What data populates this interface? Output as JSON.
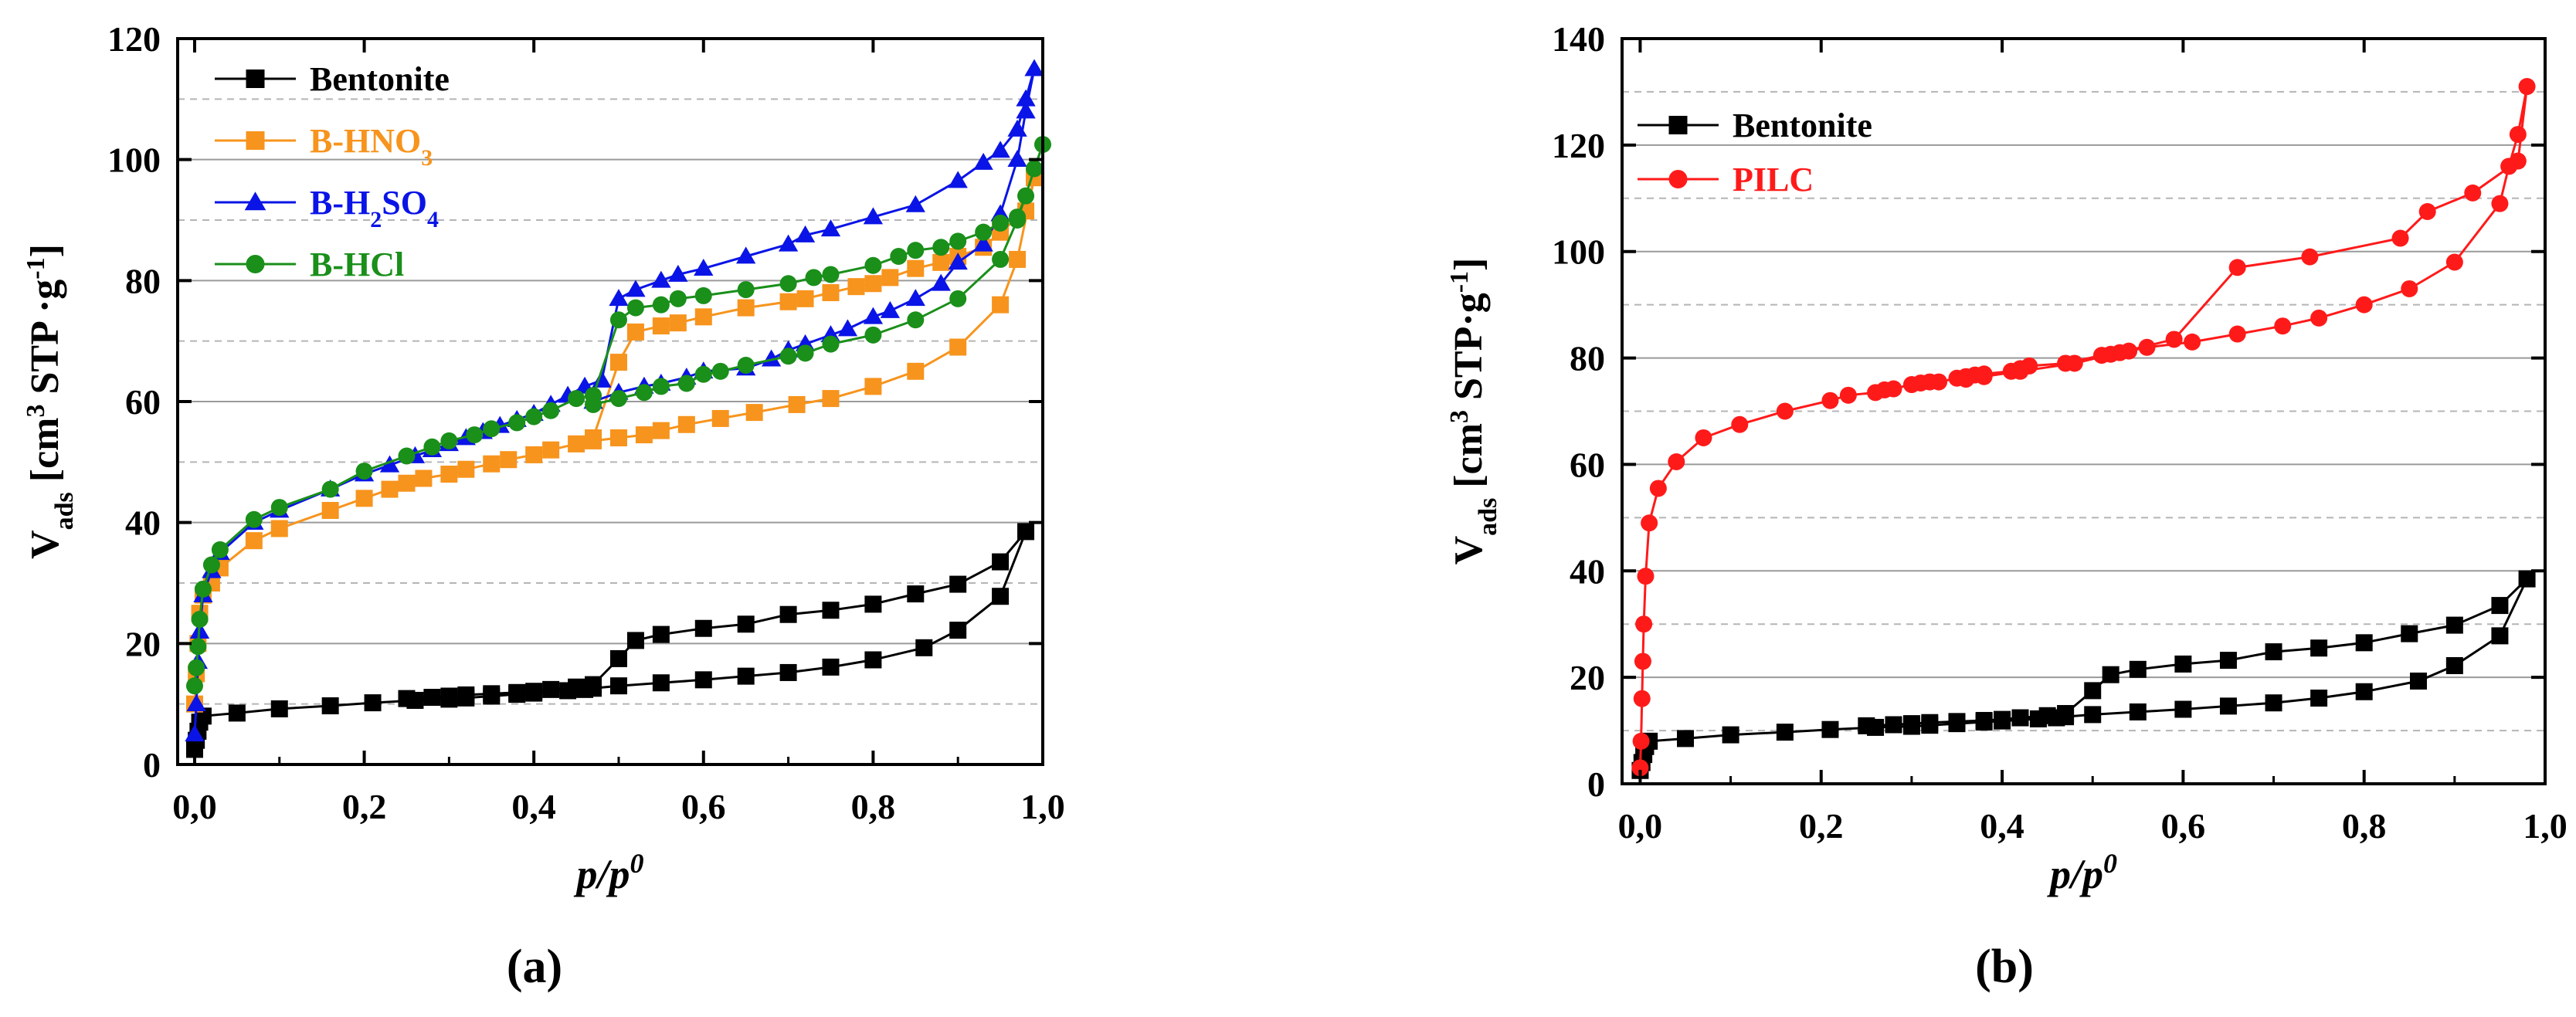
{
  "chart_data": [
    {
      "id": "a",
      "type": "line",
      "panel_label": "(a)",
      "xlabel": "p/p",
      "xlabel_sup": "0",
      "ylabel": "V",
      "ylabel_sub": "ads",
      "ylabel_unit": "[cm",
      "ylabel_unit_sup": "3",
      "ylabel_unit_rest": " STP ·g",
      "ylabel_unit_sup2": "-1",
      "ylabel_unit_end": "]",
      "xlim": [
        -0.02,
        1.0
      ],
      "ylim": [
        0,
        120
      ],
      "xticks": [
        0.0,
        0.2,
        0.4,
        0.6,
        0.8,
        1.0
      ],
      "xtick_labels": [
        "0,0",
        "0,2",
        "0,4",
        "0,6",
        "0,8",
        "1,0"
      ],
      "yticks": [
        0,
        20,
        40,
        60,
        80,
        100,
        120
      ],
      "ytick_labels": [
        "0",
        "20",
        "40",
        "60",
        "80",
        "100",
        "120"
      ],
      "grid_solid": [
        20,
        40,
        60,
        80,
        100
      ],
      "grid_dashed": [
        10,
        30,
        50,
        70,
        90,
        110
      ],
      "legend_position": "top-left",
      "series": [
        {
          "name": "Bentonite",
          "legend_parts": [
            [
              "Bentonite",
              ""
            ]
          ],
          "color": "#000000",
          "marker": "square",
          "x": [
            0.0,
            0.002,
            0.004,
            0.006,
            0.01,
            0.05,
            0.1,
            0.16,
            0.21,
            0.26,
            0.3,
            0.32,
            0.35,
            0.38,
            0.4,
            0.44,
            0.46,
            0.47,
            0.5,
            0.55,
            0.6,
            0.65,
            0.7,
            0.75,
            0.8,
            0.86,
            0.9,
            0.95,
            0.98,
            0.95,
            0.9,
            0.85,
            0.8,
            0.75,
            0.7,
            0.65,
            0.6,
            0.55,
            0.52,
            0.5,
            0.47,
            0.45,
            0.42,
            0.4,
            0.38,
            0.35,
            0.32,
            0.3,
            0.28,
            0.25
          ],
          "y": [
            2.5,
            4,
            5.5,
            7,
            8,
            8.5,
            9.2,
            9.7,
            10.2,
            10.6,
            10.8,
            11.0,
            11.3,
            11.6,
            11.8,
            12.2,
            12.4,
            12.6,
            13,
            13.5,
            14,
            14.6,
            15.2,
            16.1,
            17.3,
            19.3,
            22.2,
            27.8,
            38.5,
            33.5,
            29.8,
            28.2,
            26.5,
            25.5,
            24.8,
            23.2,
            22.5,
            21.5,
            20.5,
            17.5,
            13.2,
            12.8,
            12.4,
            12.1,
            11.9,
            11.7,
            11.5,
            11.3,
            11.1,
            10.9
          ]
        },
        {
          "name": "B-HNO3",
          "legend_parts": [
            [
              "B-HNO",
              ""
            ],
            [
              "3",
              "sub"
            ]
          ],
          "color": "#f7941d",
          "marker": "square",
          "x": [
            0.0,
            0.002,
            0.004,
            0.006,
            0.01,
            0.02,
            0.03,
            0.07,
            0.1,
            0.16,
            0.2,
            0.23,
            0.25,
            0.27,
            0.3,
            0.32,
            0.35,
            0.37,
            0.4,
            0.42,
            0.45,
            0.47,
            0.5,
            0.53,
            0.55,
            0.58,
            0.62,
            0.66,
            0.71,
            0.75,
            0.8,
            0.85,
            0.9,
            0.95,
            0.97,
            0.99,
            0.98,
            0.95,
            0.93,
            0.9,
            0.88,
            0.85,
            0.82,
            0.8,
            0.78,
            0.75,
            0.72,
            0.7,
            0.65,
            0.6,
            0.57,
            0.55,
            0.52,
            0.5,
            0.47
          ],
          "y": [
            10,
            15,
            20,
            25,
            28,
            30,
            32.5,
            37,
            39,
            42,
            44,
            45.5,
            46.5,
            47.3,
            48,
            48.8,
            49.7,
            50.4,
            51.2,
            52,
            53,
            53.5,
            54,
            54.5,
            55.2,
            56.2,
            57.2,
            58.2,
            59.5,
            60.5,
            62.5,
            65,
            69,
            76,
            83.5,
            97,
            91.5,
            88,
            85.5,
            84,
            83,
            82,
            80.5,
            79.5,
            79,
            78,
            77,
            76.5,
            75.5,
            74,
            73,
            72.5,
            71.5,
            66.5,
            54
          ]
        },
        {
          "name": "B-H2SO4",
          "legend_parts": [
            [
              "B-H",
              ""
            ],
            [
              "2",
              "sub"
            ],
            [
              "SO",
              ""
            ],
            [
              "4",
              "sub"
            ]
          ],
          "color": "#0a14e6",
          "marker": "triangle",
          "x": [
            0.0,
            0.002,
            0.004,
            0.006,
            0.01,
            0.02,
            0.03,
            0.07,
            0.1,
            0.16,
            0.2,
            0.23,
            0.26,
            0.28,
            0.3,
            0.32,
            0.34,
            0.36,
            0.38,
            0.4,
            0.42,
            0.44,
            0.46,
            0.48,
            0.5,
            0.52,
            0.55,
            0.57,
            0.6,
            0.65,
            0.7,
            0.72,
            0.75,
            0.8,
            0.85,
            0.9,
            0.93,
            0.95,
            0.97,
            0.98,
            0.99,
            0.98,
            0.97,
            0.95,
            0.93,
            0.9,
            0.88,
            0.85,
            0.82,
            0.8,
            0.77,
            0.75,
            0.72,
            0.7,
            0.68,
            0.65,
            0.6,
            0.58,
            0.55,
            0.53,
            0.5,
            0.47
          ],
          "y": [
            5,
            10,
            17,
            22,
            28,
            32,
            35,
            40,
            42,
            45.5,
            48,
            49.5,
            51,
            52,
            53,
            54,
            55,
            56,
            57,
            58,
            59.5,
            61,
            62.5,
            63.5,
            77,
            78.5,
            80,
            81,
            82,
            84,
            86,
            87.5,
            88.5,
            90.5,
            92.5,
            96.5,
            99.5,
            101.5,
            105,
            110,
            115,
            108,
            100,
            91,
            86,
            83,
            79.5,
            77,
            75,
            74,
            72,
            71,
            69.5,
            68.5,
            67,
            65.5,
            65,
            64,
            63,
            62.5,
            61.5,
            60
          ]
        },
        {
          "name": "B-HCl",
          "legend_parts": [
            [
              "B-HCl",
              ""
            ]
          ],
          "color": "#1a8f1a",
          "marker": "circle",
          "x": [
            0.0,
            0.002,
            0.004,
            0.006,
            0.01,
            0.02,
            0.03,
            0.07,
            0.1,
            0.16,
            0.2,
            0.25,
            0.28,
            0.3,
            0.33,
            0.35,
            0.38,
            0.4,
            0.42,
            0.45,
            0.47,
            0.5,
            0.52,
            0.55,
            0.57,
            0.6,
            0.65,
            0.7,
            0.73,
            0.75,
            0.8,
            0.83,
            0.85,
            0.88,
            0.9,
            0.93,
            0.95,
            0.97,
            0.98,
            0.99,
            1.0,
            0.97,
            0.95,
            0.9,
            0.85,
            0.8,
            0.75,
            0.72,
            0.7,
            0.65,
            0.62,
            0.6,
            0.58,
            0.55,
            0.53,
            0.5,
            0.47
          ],
          "y": [
            13,
            16,
            19.5,
            24,
            29,
            33,
            35.5,
            40.5,
            42.5,
            45.5,
            48.5,
            51,
            52.5,
            53.5,
            54.5,
            55.5,
            56.5,
            57.5,
            58.5,
            60.5,
            61,
            73.5,
            75.5,
            76,
            77,
            77.5,
            78.5,
            79.5,
            80.5,
            81,
            82.5,
            84,
            85,
            85.5,
            86.5,
            88,
            89.5,
            90.5,
            94,
            98.5,
            102.5,
            90,
            83.5,
            77,
            73.5,
            71,
            69.5,
            68,
            67.5,
            66,
            65,
            64.5,
            63,
            62.5,
            61.5,
            60.5,
            59.5
          ]
        }
      ]
    },
    {
      "id": "b",
      "type": "line",
      "panel_label": "(b)",
      "xlabel": "p/p",
      "xlabel_sup": "0",
      "ylabel": "V",
      "ylabel_sub": "ads",
      "ylabel_unit": "[cm",
      "ylabel_unit_sup": "3",
      "ylabel_unit_rest": " STP·g",
      "ylabel_unit_sup2": "-1",
      "ylabel_unit_end": "]",
      "xlim": [
        -0.02,
        1.0
      ],
      "ylim": [
        0,
        140
      ],
      "xticks": [
        0.0,
        0.2,
        0.4,
        0.6,
        0.8,
        1.0
      ],
      "xtick_labels": [
        "0,0",
        "0,2",
        "0,4",
        "0,6",
        "0,8",
        "1,0"
      ],
      "yticks": [
        0,
        20,
        40,
        60,
        80,
        100,
        120,
        140
      ],
      "ytick_labels": [
        "0",
        "20",
        "40",
        "60",
        "80",
        "100",
        "120",
        "140"
      ],
      "grid_solid": [
        20,
        40,
        60,
        80,
        100,
        120
      ],
      "grid_dashed": [
        10,
        30,
        50,
        70,
        90,
        110,
        130
      ],
      "legend_position": "top-left",
      "series": [
        {
          "name": "Bentonite",
          "legend_parts": [
            [
              "Bentonite",
              ""
            ]
          ],
          "color": "#000000",
          "marker": "square",
          "x": [
            0.0,
            0.002,
            0.004,
            0.006,
            0.01,
            0.05,
            0.1,
            0.16,
            0.21,
            0.26,
            0.3,
            0.32,
            0.35,
            0.38,
            0.4,
            0.44,
            0.46,
            0.47,
            0.5,
            0.55,
            0.6,
            0.65,
            0.7,
            0.75,
            0.8,
            0.86,
            0.9,
            0.95,
            0.98,
            0.95,
            0.9,
            0.85,
            0.8,
            0.75,
            0.7,
            0.65,
            0.6,
            0.55,
            0.52,
            0.5,
            0.47,
            0.45,
            0.42,
            0.4,
            0.38,
            0.35,
            0.32,
            0.3,
            0.28,
            0.25
          ],
          "y": [
            2.5,
            4,
            5.5,
            7,
            8,
            8.5,
            9.2,
            9.7,
            10.2,
            10.6,
            10.8,
            11.0,
            11.3,
            11.6,
            11.8,
            12.2,
            12.4,
            12.6,
            13,
            13.5,
            14,
            14.6,
            15.2,
            16.1,
            17.3,
            19.3,
            22.2,
            27.8,
            38.5,
            33.5,
            29.8,
            28.2,
            26.5,
            25.5,
            24.8,
            23.2,
            22.5,
            21.5,
            20.5,
            17.5,
            13.2,
            12.8,
            12.4,
            12.1,
            11.9,
            11.7,
            11.5,
            11.3,
            11.1,
            10.9
          ]
        },
        {
          "name": "PILC",
          "legend_parts": [
            [
              "PILC",
              ""
            ]
          ],
          "color": "#ff1a1a",
          "marker": "circle",
          "x": [
            0.0,
            0.001,
            0.002,
            0.003,
            0.004,
            0.006,
            0.01,
            0.02,
            0.04,
            0.07,
            0.11,
            0.16,
            0.21,
            0.23,
            0.26,
            0.27,
            0.28,
            0.3,
            0.31,
            0.32,
            0.33,
            0.35,
            0.36,
            0.37,
            0.38,
            0.41,
            0.42,
            0.43,
            0.47,
            0.51,
            0.52,
            0.53,
            0.54,
            0.56,
            0.61,
            0.66,
            0.71,
            0.75,
            0.8,
            0.85,
            0.9,
            0.95,
            0.96,
            0.97,
            0.98,
            0.97,
            0.92,
            0.87,
            0.84,
            0.74,
            0.66,
            0.59,
            0.48,
            0.42,
            0.38,
            0.36
          ],
          "y": [
            3,
            8,
            16,
            23,
            30,
            39,
            49,
            55.5,
            60.5,
            65,
            67.5,
            70,
            72,
            73,
            73.5,
            74,
            74.2,
            75,
            75.3,
            75.5,
            75.5,
            76.2,
            76.5,
            76.8,
            77,
            77.5,
            78,
            78.5,
            79,
            80.5,
            80.7,
            81,
            81.3,
            82,
            83,
            84.5,
            86,
            87.5,
            90,
            93,
            98,
            109,
            116,
            122,
            131,
            117,
            111,
            107.5,
            102.5,
            99,
            97,
            83.5,
            79,
            77.5,
            76.5,
            76
          ]
        }
      ]
    }
  ]
}
